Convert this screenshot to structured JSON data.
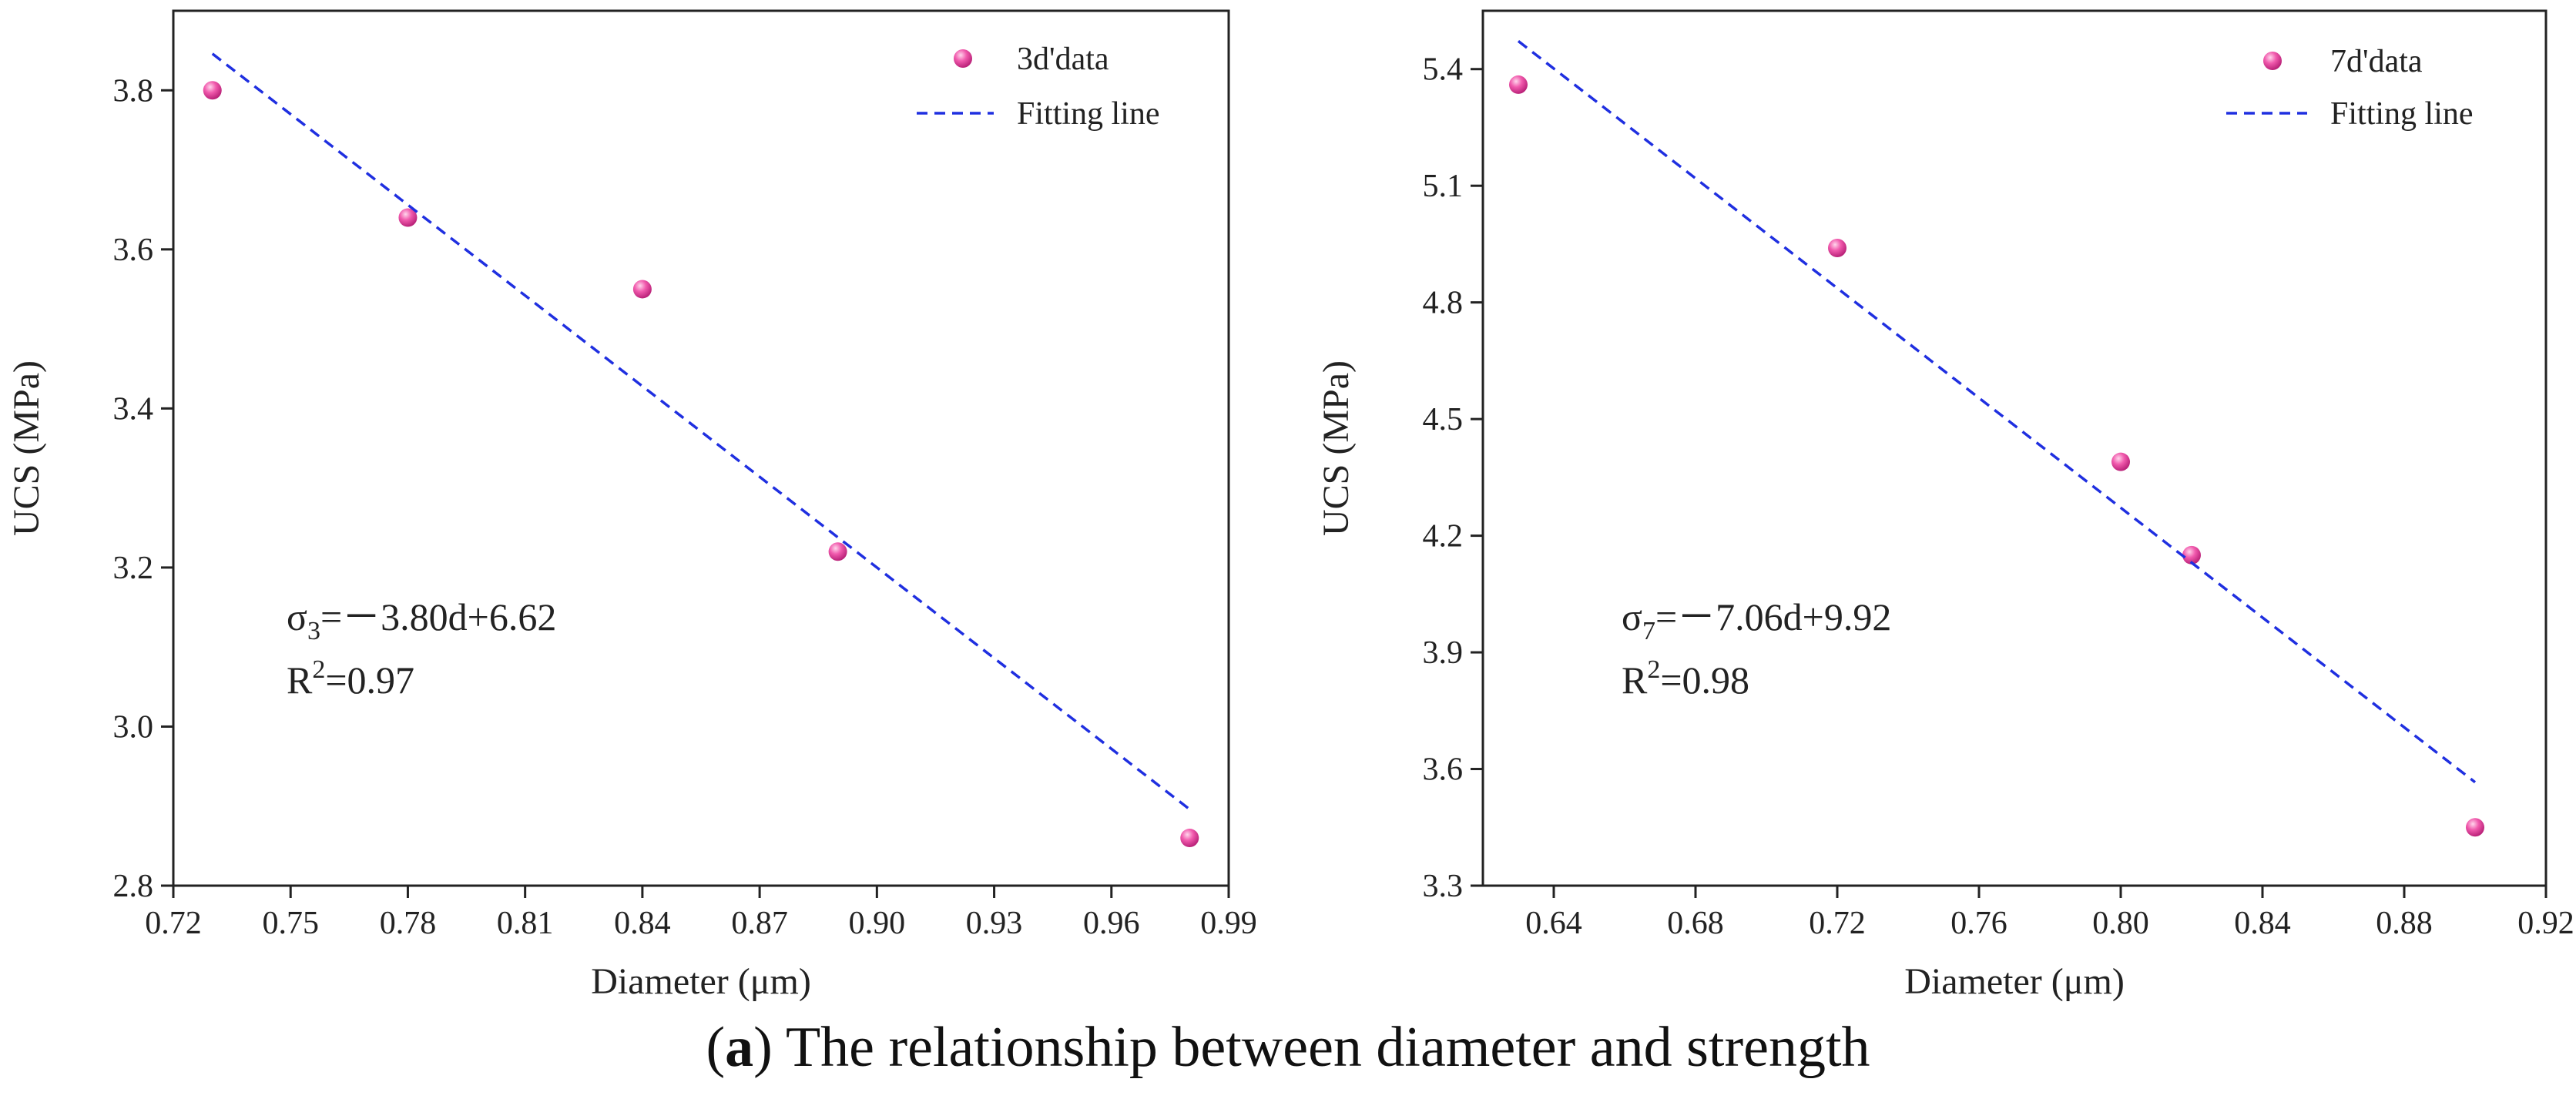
{
  "chart_data": [
    {
      "type": "scatter",
      "title": "",
      "xlabel": "Diameter (μm)",
      "ylabel": "UCS (MPa)",
      "xlim": [
        0.72,
        0.99
      ],
      "ylim": [
        2.8,
        3.9
      ],
      "xticks": [
        "0.72",
        "0.75",
        "0.78",
        "0.81",
        "0.84",
        "0.87",
        "0.90",
        "0.93",
        "0.96",
        "0.99"
      ],
      "yticks": [
        "2.8",
        "3.0",
        "3.2",
        "3.4",
        "3.6",
        "3.8"
      ],
      "series": [
        {
          "name": "3d'data",
          "kind": "scatter",
          "color": "#ee4fa6",
          "x": [
            0.73,
            0.78,
            0.84,
            0.89,
            0.98
          ],
          "y": [
            3.8,
            3.64,
            3.55,
            3.22,
            2.86
          ]
        },
        {
          "name": "Fitting line",
          "kind": "line",
          "color": "#1f2fe0",
          "x": [
            0.73,
            0.98
          ],
          "y": [
            3.846,
            2.896
          ]
        }
      ],
      "legend_position": "top-right",
      "equation": {
        "symbol": "σ",
        "subscript": "3",
        "rhs": "=－3.80d+6.62"
      },
      "r2": {
        "label": "R",
        "sup": "2",
        "value": "=0.97"
      }
    },
    {
      "type": "scatter",
      "title": "",
      "xlabel": "Diameter (μm)",
      "ylabel": "UCS (MPa)",
      "xlim": [
        0.62,
        0.92
      ],
      "ylim": [
        3.3,
        5.55
      ],
      "xticks": [
        "0.64",
        "0.68",
        "0.72",
        "0.76",
        "0.80",
        "0.84",
        "0.88",
        "0.92"
      ],
      "yticks": [
        "3.3",
        "3.6",
        "3.9",
        "4.2",
        "4.5",
        "4.8",
        "5.1",
        "5.4"
      ],
      "series": [
        {
          "name": "7d'data",
          "kind": "scatter",
          "color": "#ee4fa6",
          "x": [
            0.63,
            0.72,
            0.8,
            0.82,
            0.9
          ],
          "y": [
            5.36,
            4.94,
            4.39,
            4.15,
            3.45
          ]
        },
        {
          "name": "Fitting line",
          "kind": "line",
          "color": "#1f2fe0",
          "x": [
            0.63,
            0.9
          ],
          "y": [
            5.472,
            3.566
          ]
        }
      ],
      "legend_position": "top-right",
      "equation": {
        "symbol": "σ",
        "subscript": "7",
        "rhs": "=－7.06d+9.92"
      },
      "r2": {
        "label": "R",
        "sup": "2",
        "value": "=0.98"
      }
    }
  ],
  "caption": {
    "label": "a",
    "text": " The relationship between diameter and strength"
  }
}
